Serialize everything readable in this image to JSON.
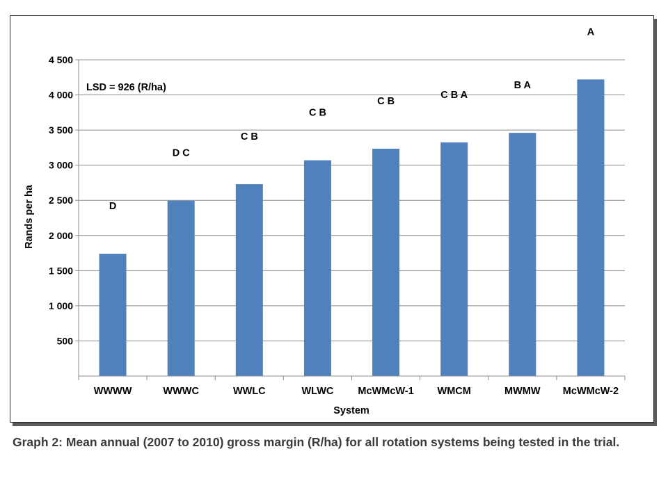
{
  "chart_data": {
    "type": "bar",
    "categories": [
      "WWWW",
      "WWWC",
      "WWLC",
      "WLWC",
      "McWMcW-1",
      "WMCM",
      "MWMW",
      "McWMcW-2"
    ],
    "values": [
      1740,
      2495,
      2730,
      3070,
      3235,
      3325,
      3460,
      4220
    ],
    "significance_letters": [
      "D",
      "D C",
      "C B",
      "C B",
      "C B",
      "C B A",
      "B A",
      "A"
    ],
    "ylim": [
      0,
      4500
    ],
    "yticks": [
      500,
      1000,
      1500,
      2000,
      2500,
      3000,
      3500,
      4000,
      4500
    ],
    "ytick_labels": [
      "500",
      "1 000",
      "1 500",
      "2 000",
      "2 500",
      "3 000",
      "3 500",
      "4 000",
      "4 500"
    ],
    "xlabel": "System",
    "ylabel": "Rands per ha",
    "annotation": "LSD = 926 (R/ha)",
    "grid": true,
    "legend": "none",
    "bar_color": "#4f81bd"
  },
  "caption": "Graph 2: Mean annual (2007 to 2010) gross margin (R/ha) for all rotation systems being tested in the trial."
}
